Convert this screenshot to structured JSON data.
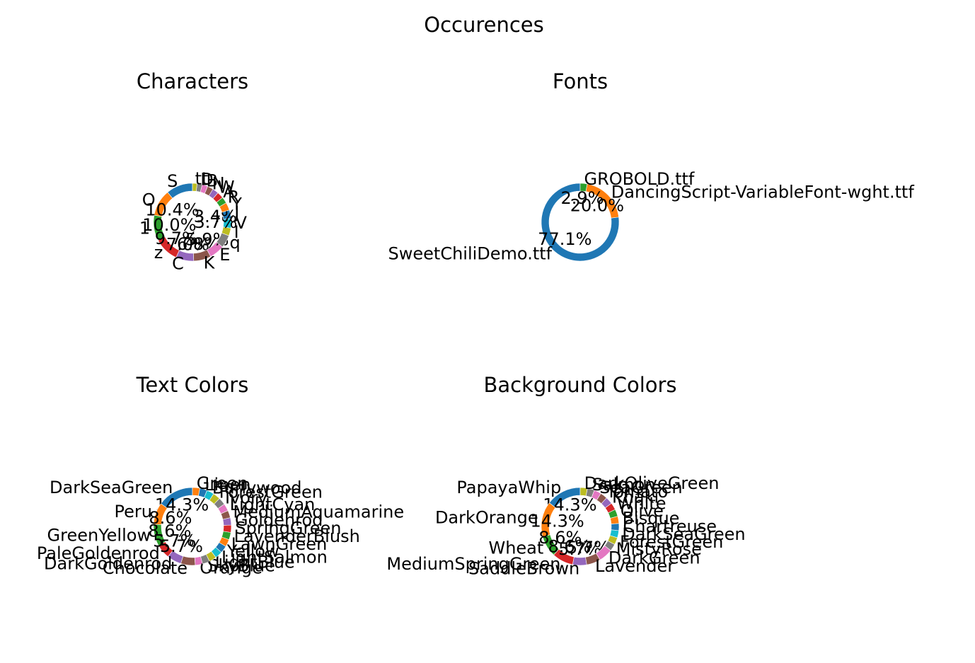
{
  "figure_title": "Occurences",
  "chart_data": [
    {
      "type": "pie",
      "donut": true,
      "title": "Characters",
      "slices": [
        {
          "label": "S",
          "value": 10.4,
          "pct_label": ""
        },
        {
          "label": "O",
          "value": 10.4,
          "pct_label": "10.4%"
        },
        {
          "label": "1",
          "value": 10.0,
          "pct_label": "10.0%"
        },
        {
          "label": "z",
          "value": 9.7,
          "pct_label": "9.7%"
        },
        {
          "label": "C",
          "value": 7.0,
          "pct_label": "7.0%"
        },
        {
          "label": "K",
          "value": 6.8,
          "pct_label": "6.8%"
        },
        {
          "label": "E",
          "value": 5.9,
          "pct_label": "5.9%"
        },
        {
          "label": "q",
          "value": 5.0,
          "pct_label": ""
        },
        {
          "label": "I",
          "value": 3.0,
          "pct_label": ""
        },
        {
          "label": "V",
          "value": 3.7,
          "pct_label": "3.7%"
        },
        {
          "label": "J",
          "value": 3.4,
          "pct_label": "3.4%"
        },
        {
          "label": "Y",
          "value": 3.0,
          "pct_label": ""
        },
        {
          "label": "R",
          "value": 2.5,
          "pct_label": ""
        },
        {
          "label": "A",
          "value": 2.5,
          "pct_label": ""
        },
        {
          "label": "W",
          "value": 2.4,
          "pct_label": ""
        },
        {
          "label": "N",
          "value": 2.3,
          "pct_label": ""
        },
        {
          "label": "B",
          "value": 2.2,
          "pct_label": ""
        },
        {
          "label": "D",
          "value": 2.0,
          "pct_label": ""
        },
        {
          "label": "tt",
          "value": 1.8,
          "pct_label": ""
        }
      ]
    },
    {
      "type": "pie",
      "donut": true,
      "title": "Fonts",
      "slices": [
        {
          "label": "SweetChiliDemo.ttf",
          "value": 77.1,
          "pct_label": "77.1%"
        },
        {
          "label": "DancingScript-VariableFont-wght.ttf",
          "value": 20.0,
          "pct_label": "20.0%"
        },
        {
          "label": "GROBOLD.ttf",
          "value": 2.9,
          "pct_label": "2.9%"
        }
      ]
    },
    {
      "type": "pie",
      "donut": true,
      "title": "Text Colors",
      "slices": [
        {
          "label": "DarkSeaGreen",
          "value": 14.3,
          "pct_label": "14.3%"
        },
        {
          "label": "Peru",
          "value": 8.6,
          "pct_label": "8.6%"
        },
        {
          "label": "GreenYellow",
          "value": 8.6,
          "pct_label": "8.6%"
        },
        {
          "label": "PaleGoldenrod",
          "value": 5.7,
          "pct_label": "5.7%"
        },
        {
          "label": "DarkGoldenrod",
          "value": 5.7,
          "pct_label": "5.7%"
        },
        {
          "label": "Chocolate",
          "value": 5.7,
          "pct_label": ""
        },
        {
          "label": "Orange",
          "value": 2.9,
          "pct_label": ""
        },
        {
          "label": "SkyBlue",
          "value": 2.9,
          "pct_label": ""
        },
        {
          "label": "LightBlue",
          "value": 2.9,
          "pct_label": ""
        },
        {
          "label": "LightSalmon",
          "value": 2.9,
          "pct_label": ""
        },
        {
          "label": "Yellow",
          "value": 2.9,
          "pct_label": ""
        },
        {
          "label": "LawnGreen",
          "value": 2.9,
          "pct_label": ""
        },
        {
          "label": "LavenderBlush",
          "value": 2.9,
          "pct_label": ""
        },
        {
          "label": "SpringGreen",
          "value": 2.9,
          "pct_label": ""
        },
        {
          "label": "Goldenrod",
          "value": 2.9,
          "pct_label": ""
        },
        {
          "label": "MediumAquamarine",
          "value": 2.9,
          "pct_label": ""
        },
        {
          "label": "LightCyan",
          "value": 2.9,
          "pct_label": ""
        },
        {
          "label": "Ivory",
          "value": 2.9,
          "pct_label": ""
        },
        {
          "label": "ForestGreen",
          "value": 2.9,
          "pct_label": ""
        },
        {
          "label": "Burlywood",
          "value": 2.9,
          "pct_label": ""
        },
        {
          "label": "Linen",
          "value": 2.9,
          "pct_label": ""
        },
        {
          "label": "Green",
          "value": 2.9,
          "pct_label": ""
        }
      ]
    },
    {
      "type": "pie",
      "donut": true,
      "title": "Background Colors",
      "slices": [
        {
          "label": "PapayaWhip",
          "value": 14.3,
          "pct_label": "14.3%"
        },
        {
          "label": "DarkOrange",
          "value": 14.3,
          "pct_label": "14.3%"
        },
        {
          "label": "Wheat",
          "value": 8.6,
          "pct_label": "8.6%"
        },
        {
          "label": "MediumSpringGreen",
          "value": 8.6,
          "pct_label": "8.6%"
        },
        {
          "label": "SaddleBrown",
          "value": 5.7,
          "pct_label": "5.7%"
        },
        {
          "label": "Lavender",
          "value": 5.7,
          "pct_label": "5.7%"
        },
        {
          "label": "DarkGreen",
          "value": 5.7,
          "pct_label": ""
        },
        {
          "label": "MistyRose",
          "value": 2.9,
          "pct_label": ""
        },
        {
          "label": "ForestGreen",
          "value": 2.9,
          "pct_label": ""
        },
        {
          "label": "DarkSeaGreen",
          "value": 2.9,
          "pct_label": ""
        },
        {
          "label": "Chartreuse",
          "value": 2.9,
          "pct_label": ""
        },
        {
          "label": "Bisque",
          "value": 2.9,
          "pct_label": ""
        },
        {
          "label": "Olive",
          "value": 2.9,
          "pct_label": ""
        },
        {
          "label": "White",
          "value": 2.9,
          "pct_label": ""
        },
        {
          "label": "Khaki",
          "value": 2.9,
          "pct_label": ""
        },
        {
          "label": "Tomato",
          "value": 2.9,
          "pct_label": ""
        },
        {
          "label": "SeaGreen",
          "value": 2.9,
          "pct_label": ""
        },
        {
          "label": "Salmon",
          "value": 2.9,
          "pct_label": ""
        },
        {
          "label": "DarkOliveGreen",
          "value": 2.9,
          "pct_label": ""
        }
      ]
    }
  ],
  "palette": [
    "#1f77b4",
    "#ff7f0e",
    "#2ca02c",
    "#d62728",
    "#9467bd",
    "#8c564b",
    "#e377c2",
    "#7f7f7f",
    "#bcbd22",
    "#17becf"
  ]
}
